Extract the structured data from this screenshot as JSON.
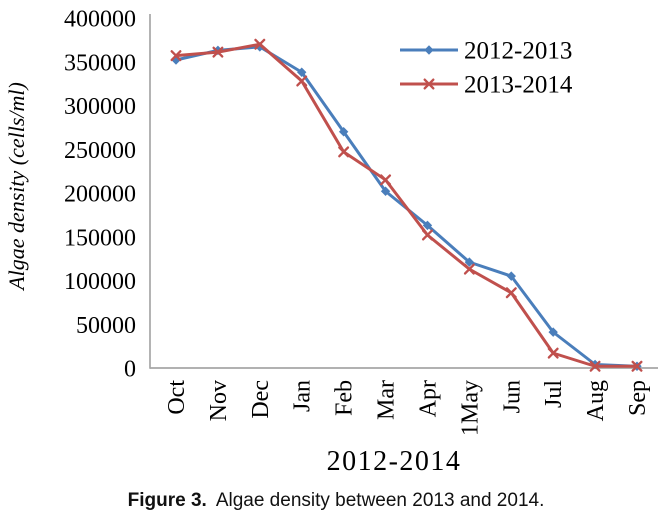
{
  "caption": {
    "label": "Figure 3.",
    "text": "Algae density between 2013 and 2014."
  },
  "chart_data": {
    "type": "line",
    "title": "",
    "xlabel": "2012-2014",
    "ylabel": "Algae density (cells/ml)",
    "categories": [
      "Oct",
      "Nov",
      "Dec",
      "Jan",
      "Feb",
      "Mar",
      "Apr",
      "1May",
      "Jun",
      "Jul",
      "Aug",
      "Sep"
    ],
    "ylim": [
      0,
      400000
    ],
    "yticks": [
      0,
      50000,
      100000,
      150000,
      200000,
      250000,
      300000,
      350000,
      400000
    ],
    "grid": false,
    "legend_position": "top-right",
    "axis_color": "#a6a6a6",
    "series": [
      {
        "name": "2012-2013",
        "color": "#4a7ebb",
        "marker": "diamond",
        "values": [
          352000,
          363000,
          367000,
          338000,
          270000,
          202000,
          163000,
          121000,
          105000,
          41000,
          4000,
          2000
        ]
      },
      {
        "name": "2013-2014",
        "color": "#c0504d",
        "marker": "x",
        "values": [
          357000,
          361000,
          370000,
          328000,
          247000,
          215000,
          152000,
          113000,
          86000,
          17000,
          2000,
          2000
        ]
      }
    ]
  }
}
